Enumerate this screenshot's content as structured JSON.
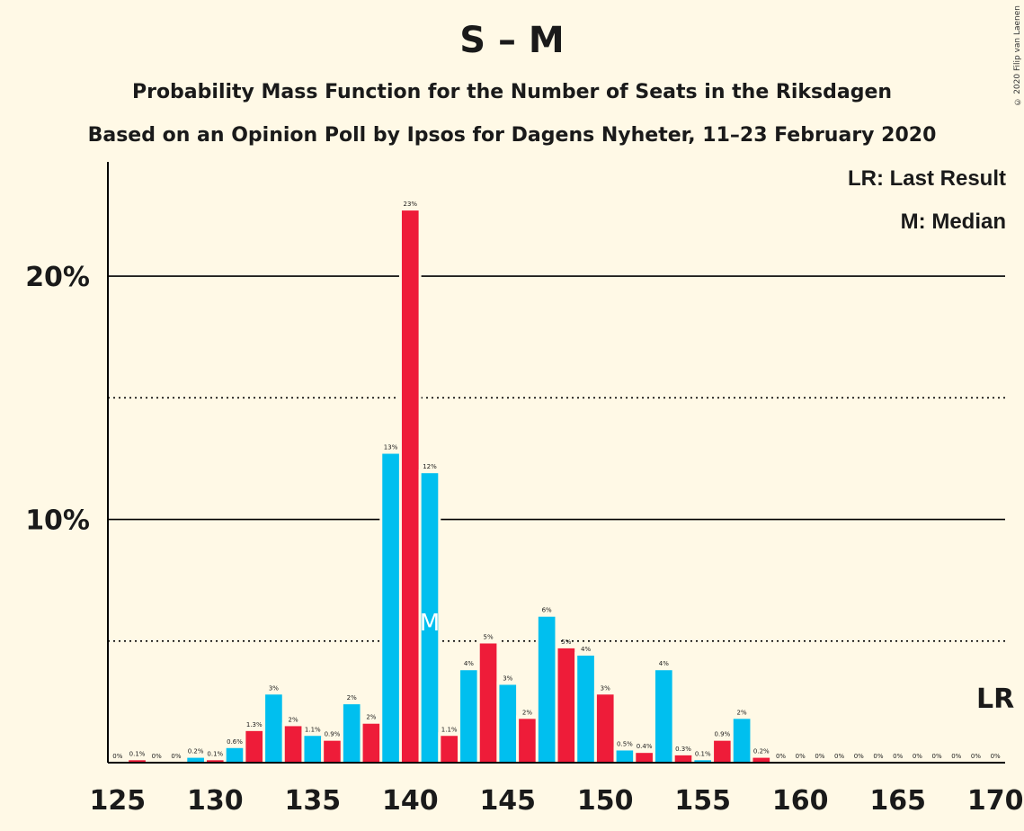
{
  "header": {
    "title": "S – M",
    "subtitle1": "Probability Mass Function for the Number of Seats in the Riksdagen",
    "subtitle2": "Based on an Opinion Poll by Ipsos for Dagens Nyheter, 11–23 February 2020"
  },
  "copyright": "© 2020 Filip van Laenen",
  "legend": {
    "lr": "LR: Last Result",
    "median": "M: Median"
  },
  "markers": {
    "last_result_label": "LR",
    "last_result_seat": 170,
    "median_label": "M",
    "median_seat": 141
  },
  "colors": {
    "blue": "#00bfef",
    "red": "#ee1c39",
    "background": "#fff9e6"
  },
  "chart_data": {
    "type": "bar",
    "x": [
      125,
      126,
      127,
      128,
      129,
      130,
      131,
      132,
      133,
      134,
      135,
      136,
      137,
      138,
      139,
      140,
      141,
      142,
      143,
      144,
      145,
      146,
      147,
      148,
      149,
      150,
      151,
      152,
      153,
      154,
      155,
      156,
      157,
      158,
      159,
      160,
      161,
      162,
      163,
      164,
      165,
      166,
      167,
      168,
      169,
      170
    ],
    "values": [
      0,
      0.1,
      0,
      0,
      0.2,
      0.1,
      0.6,
      1.3,
      2.8,
      1.5,
      1.1,
      0.9,
      2.4,
      1.6,
      12.7,
      22.7,
      11.9,
      1.1,
      3.8,
      4.9,
      3.2,
      1.8,
      6.0,
      4.7,
      4.4,
      2.8,
      0.5,
      0.4,
      3.8,
      0.3,
      0.1,
      0.9,
      1.8,
      0.2,
      0,
      0,
      0,
      0,
      0,
      0,
      0,
      0,
      0,
      0,
      0,
      0
    ],
    "labels": [
      "0%",
      "0.1%",
      "0%",
      "0%",
      "0.2%",
      "0.1%",
      "0.6%",
      "1.3%",
      "3%",
      "2%",
      "1.1%",
      "0.9%",
      "2%",
      "2%",
      "13%",
      "23%",
      "12%",
      "1.1%",
      "4%",
      "5%",
      "3%",
      "2%",
      "6%",
      "5%",
      "4%",
      "3%",
      "0.5%",
      "0.4%",
      "4%",
      "0.3%",
      "0.1%",
      "0.9%",
      "2%",
      "0.2%",
      "0%",
      "0%",
      "0%",
      "0%",
      "0%",
      "0%",
      "0%",
      "0%",
      "0%",
      "0%",
      "0%",
      "0%"
    ],
    "xticks": [
      125,
      130,
      135,
      140,
      145,
      150,
      155,
      160,
      165,
      170
    ],
    "yticks_solid": [
      10,
      20
    ],
    "yticks_dotted": [
      5,
      15
    ],
    "ytick_labels": [
      "10%",
      "20%"
    ],
    "xlim": [
      124.5,
      170.5
    ],
    "ylim": [
      0,
      24.7
    ],
    "grid": true
  }
}
